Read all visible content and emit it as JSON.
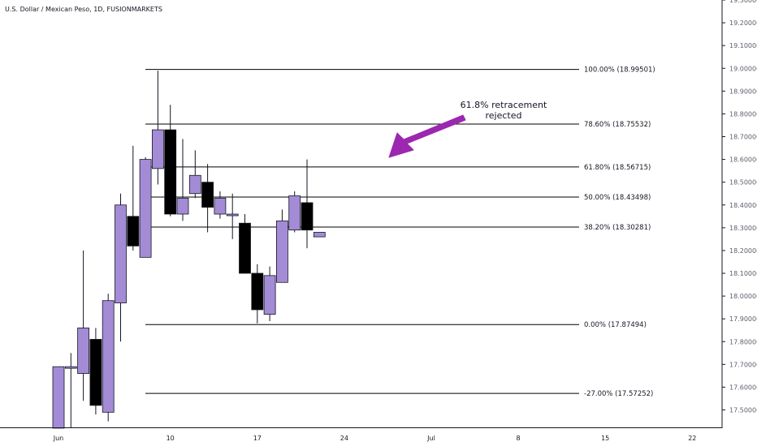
{
  "chart_data": {
    "type": "candlestick",
    "title": "U.S. Dollar / Mexican Peso, 1D, FUSIONMARKETS",
    "colors": {
      "up": "#a48bd6",
      "down": "#000000",
      "wick": "#131722",
      "fib_line": "#000000",
      "arrow": "#9c27b0",
      "axis_text": "#5d606b"
    },
    "y_axis": {
      "ylim": [
        17.42,
        19.3
      ],
      "ticks": [
        "17.50000",
        "17.60000",
        "17.70000",
        "17.80000",
        "17.90000",
        "18.00000",
        "18.10000",
        "18.20000",
        "18.30000",
        "18.40000",
        "18.50000",
        "18.60000",
        "18.70000",
        "18.80000",
        "18.90000",
        "19.00000",
        "19.10000",
        "19.20000",
        "19.30000"
      ]
    },
    "x_axis": {
      "tick_labels": [
        {
          "label": "Jun",
          "date": "2023-06-01"
        },
        {
          "label": "10",
          "date": "2023-06-10"
        },
        {
          "label": "17",
          "date": "2023-06-17"
        },
        {
          "label": "24",
          "date": "2023-06-24"
        },
        {
          "label": "Jul",
          "date": "2023-07-01"
        },
        {
          "label": "8",
          "date": "2023-07-08"
        },
        {
          "label": "15",
          "date": "2023-07-15"
        },
        {
          "label": "22",
          "date": "2023-07-22"
        }
      ]
    },
    "candles": [
      {
        "date": "2023-06-01",
        "open": 17.42,
        "high": 17.69,
        "low": 17.42,
        "close": 17.69
      },
      {
        "date": "2023-06-02",
        "open": 17.69,
        "high": 17.75,
        "low": 17.42,
        "close": 17.69
      },
      {
        "date": "2023-06-03",
        "open": 17.66,
        "high": 18.2,
        "low": 17.54,
        "close": 17.86
      },
      {
        "date": "2023-06-04",
        "open": 17.81,
        "high": 17.86,
        "low": 17.48,
        "close": 17.52
      },
      {
        "date": "2023-06-05",
        "open": 17.49,
        "high": 18.01,
        "low": 17.45,
        "close": 17.98
      },
      {
        "date": "2023-06-06",
        "open": 17.97,
        "high": 18.45,
        "low": 17.8,
        "close": 18.4
      },
      {
        "date": "2023-06-07",
        "open": 18.35,
        "high": 18.66,
        "low": 18.2,
        "close": 18.22
      },
      {
        "date": "2023-06-08",
        "open": 18.17,
        "high": 18.61,
        "low": 18.17,
        "close": 18.6
      },
      {
        "date": "2023-06-09",
        "open": 18.56,
        "high": 18.99,
        "low": 18.49,
        "close": 18.73
      },
      {
        "date": "2023-06-10",
        "open": 18.73,
        "high": 18.84,
        "low": 18.35,
        "close": 18.36
      },
      {
        "date": "2023-06-11",
        "open": 18.36,
        "high": 18.69,
        "low": 18.33,
        "close": 18.43
      },
      {
        "date": "2023-06-12",
        "open": 18.45,
        "high": 18.64,
        "low": 18.43,
        "close": 18.53
      },
      {
        "date": "2023-06-13",
        "open": 18.5,
        "high": 18.58,
        "low": 18.28,
        "close": 18.39
      },
      {
        "date": "2023-06-14",
        "open": 18.36,
        "high": 18.46,
        "low": 18.34,
        "close": 18.43
      },
      {
        "date": "2023-06-15",
        "open": 18.36,
        "high": 18.45,
        "low": 18.25,
        "close": 18.36
      },
      {
        "date": "2023-06-16",
        "open": 18.32,
        "high": 18.36,
        "low": 18.1,
        "close": 18.1
      },
      {
        "date": "2023-06-17",
        "open": 18.1,
        "high": 18.14,
        "low": 17.88,
        "close": 17.94
      },
      {
        "date": "2023-06-18",
        "open": 17.92,
        "high": 18.13,
        "low": 17.89,
        "close": 18.09
      },
      {
        "date": "2023-06-19",
        "open": 18.06,
        "high": 18.38,
        "low": 18.06,
        "close": 18.33
      },
      {
        "date": "2023-06-20",
        "open": 18.29,
        "high": 18.46,
        "low": 18.28,
        "close": 18.44
      },
      {
        "date": "2023-06-21",
        "open": 18.41,
        "high": 18.6,
        "low": 18.21,
        "close": 18.29
      },
      {
        "date": "2023-06-22",
        "open": 18.26,
        "high": 18.28,
        "low": 18.26,
        "close": 18.28
      }
    ],
    "fib_levels": [
      {
        "label": "100.00% (18.99501)",
        "value": 18.99501
      },
      {
        "label": "78.60% (18.75532)",
        "value": 18.75532
      },
      {
        "label": "61.80% (18.56715)",
        "value": 18.56715
      },
      {
        "label": "50.00% (18.43498)",
        "value": 18.43498
      },
      {
        "label": "38.20% (18.30281)",
        "value": 18.30281
      },
      {
        "label": "0.00% (17.87494)",
        "value": 17.87494
      },
      {
        "label": "-27.00% (17.57252)",
        "value": 17.57252
      }
    ],
    "annotation": {
      "lines": [
        "61.8% retracement",
        "rejected"
      ]
    }
  }
}
